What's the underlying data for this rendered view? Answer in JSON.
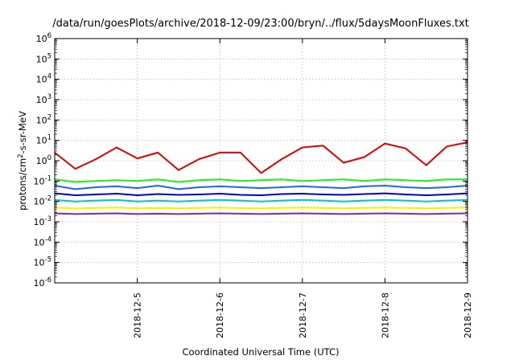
{
  "chart_data": {
    "type": "line",
    "title": "/data/run/goesPlots/archive/2018-12-09/23:00/bryn/../flux/5daysMoonFluxes.txt",
    "xlabel": "Coordinated Universal Time (UTC)",
    "ylabel": {
      "base": "protons/cm",
      "sup": "2",
      "rest": "-s-sr-MeV"
    },
    "y_scale": "log",
    "ylim_exp": [
      -6,
      6
    ],
    "ytick_labels": [
      {
        "base": "10",
        "exp": "-6"
      },
      {
        "base": "10",
        "exp": "-5"
      },
      {
        "base": "10",
        "exp": "-4"
      },
      {
        "base": "10",
        "exp": "-3"
      },
      {
        "base": "10",
        "exp": "-2"
      },
      {
        "base": "10",
        "exp": "-1"
      },
      {
        "base": "10",
        "exp": "0"
      },
      {
        "base": "10",
        "exp": "1"
      },
      {
        "base": "10",
        "exp": "2"
      },
      {
        "base": "10",
        "exp": "3"
      },
      {
        "base": "10",
        "exp": "4"
      },
      {
        "base": "10",
        "exp": "5"
      },
      {
        "base": "10",
        "exp": "6"
      }
    ],
    "x_range": [
      "2018-12-04 23:00",
      "2018-12-09 23:00"
    ],
    "xticks": [
      "2018-12-5",
      "2018-12-6",
      "2018-12-7",
      "2018-12-8",
      "2018-12-9"
    ],
    "grid": true,
    "legend": "none",
    "x": [
      "12-04 23:00",
      "12-05 05:00",
      "12-05 11:00",
      "12-05 17:00",
      "12-05 23:00",
      "12-06 05:00",
      "12-06 11:00",
      "12-06 17:00",
      "12-06 23:00",
      "12-07 05:00",
      "12-07 11:00",
      "12-07 17:00",
      "12-07 23:00",
      "12-08 05:00",
      "12-08 11:00",
      "12-08 17:00",
      "12-08 23:00",
      "12-09 05:00",
      "12-09 11:00",
      "12-09 17:00",
      "12-09 23:00"
    ],
    "series": [
      {
        "color": "#e00000",
        "values": [
          2.5,
          0.4,
          1.2,
          4.5,
          1.3,
          2.5,
          0.35,
          1.2,
          2.5,
          2.5,
          0.25,
          1.2,
          4.5,
          5.5,
          0.8,
          1.5,
          7,
          4,
          0.6,
          5,
          8
        ]
      },
      {
        "color": "#22ee22",
        "values": [
          0.12,
          0.09,
          0.1,
          0.11,
          0.1,
          0.12,
          0.09,
          0.11,
          0.12,
          0.1,
          0.11,
          0.12,
          0.1,
          0.11,
          0.12,
          0.1,
          0.12,
          0.11,
          0.1,
          0.12,
          0.12
        ]
      },
      {
        "color": "#1a66ff",
        "values": [
          0.06,
          0.04,
          0.05,
          0.055,
          0.045,
          0.06,
          0.04,
          0.05,
          0.055,
          0.05,
          0.045,
          0.05,
          0.055,
          0.05,
          0.045,
          0.055,
          0.06,
          0.05,
          0.045,
          0.05,
          0.06
        ]
      },
      {
        "color": "#0000cc",
        "values": [
          0.025,
          0.02,
          0.022,
          0.024,
          0.02,
          0.023,
          0.021,
          0.022,
          0.024,
          0.021,
          0.02,
          0.023,
          0.024,
          0.022,
          0.021,
          0.023,
          0.025,
          0.022,
          0.02,
          0.022,
          0.025
        ]
      },
      {
        "color": "#00c8c8",
        "values": [
          0.012,
          0.01,
          0.011,
          0.012,
          0.01,
          0.011,
          0.01,
          0.011,
          0.012,
          0.011,
          0.01,
          0.011,
          0.012,
          0.011,
          0.01,
          0.011,
          0.012,
          0.011,
          0.01,
          0.011,
          0.012
        ]
      },
      {
        "color": "#ffee00",
        "values": [
          0.005,
          0.0045,
          0.0048,
          0.005,
          0.0046,
          0.0048,
          0.0046,
          0.0048,
          0.005,
          0.0047,
          0.0046,
          0.0048,
          0.005,
          0.0048,
          0.0046,
          0.0048,
          0.005,
          0.0048,
          0.0046,
          0.0048,
          0.005
        ]
      },
      {
        "color": "#8b2a8b",
        "values": [
          0.0026,
          0.0024,
          0.0025,
          0.0026,
          0.0024,
          0.0025,
          0.0024,
          0.0025,
          0.0026,
          0.0025,
          0.0024,
          0.0025,
          0.0026,
          0.0025,
          0.0024,
          0.0025,
          0.0026,
          0.0025,
          0.0024,
          0.0025,
          0.0026
        ]
      }
    ]
  }
}
